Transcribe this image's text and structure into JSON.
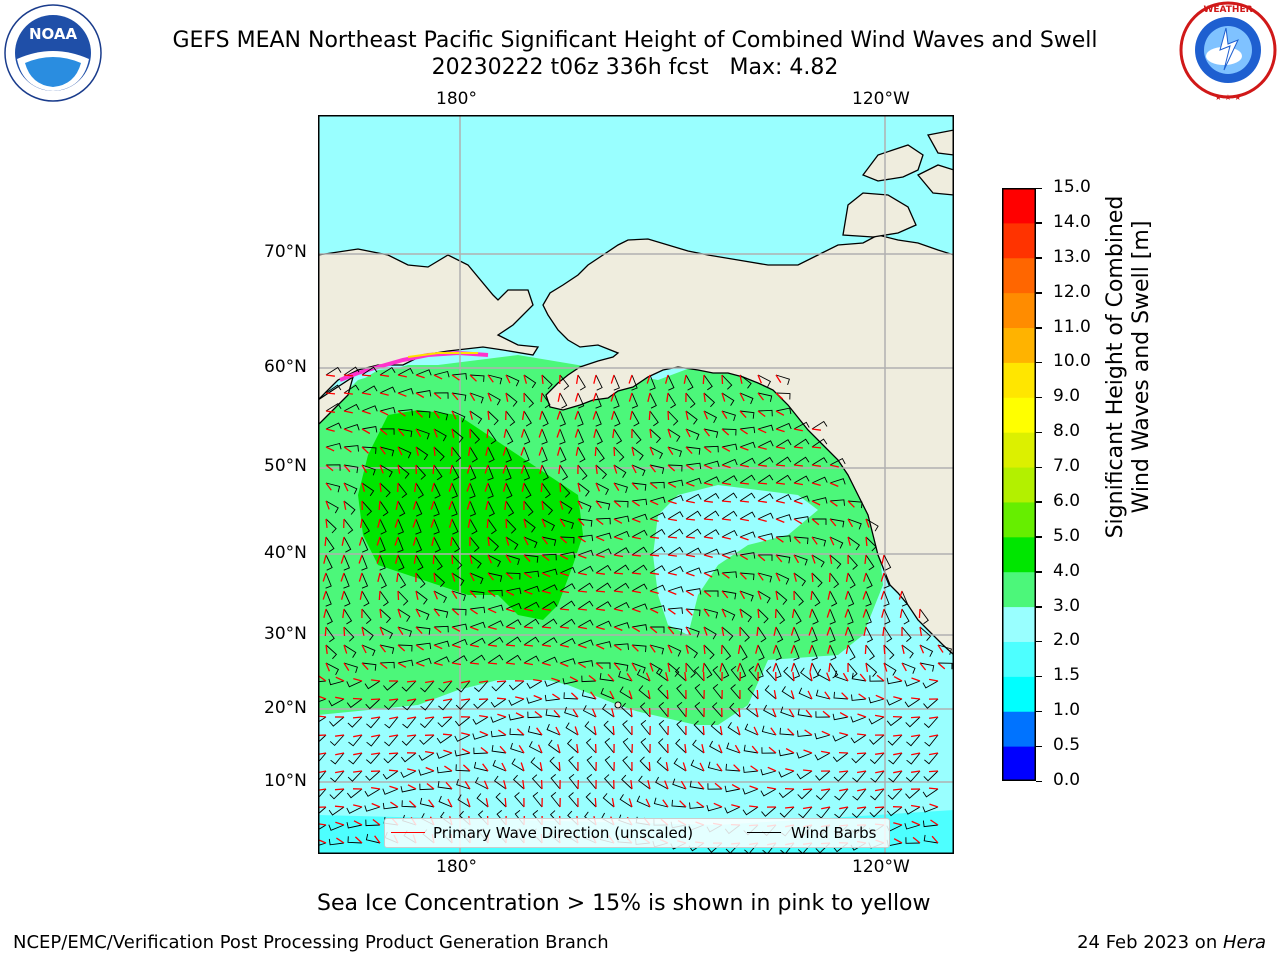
{
  "header": {
    "title_line1": "GEFS MEAN Northeast Pacific Significant Height of Combined Wind Waves and Swell",
    "title_line2": "20230222 t06z 336h fcst   Max: 4.82"
  },
  "logos": {
    "left": {
      "icon": "noaa-logo",
      "text": "NOAA",
      "ring_text": "NATIONAL OCEANIC AND ATMOSPHERIC ADMINISTRATION · U.S. DEPARTMENT OF COMMERCE"
    },
    "right": {
      "icon": "nws-logo",
      "ring_text": "NATIONAL WEATHER SERVICE"
    }
  },
  "map": {
    "top_lon_labels": [
      "180°",
      "120°W"
    ],
    "bottom_lon_labels": [
      "180°",
      "120°W"
    ],
    "lat_labels": [
      "70°N",
      "60°N",
      "50°N",
      "40°N",
      "30°N",
      "20°N",
      "10°N"
    ],
    "legend": {
      "wave_direction": "Primary Wave Direction (unscaled)",
      "wind_barbs": "Wind Barbs",
      "wave_color": "#ff0000",
      "barb_color": "#000000"
    },
    "colors": {
      "land": "#efedde",
      "ocean_low": "#99ffff",
      "ocean_mid": "#4cf77a",
      "ocean_high": "#00e600",
      "grid": "#b0b0b0"
    }
  },
  "colorbar": {
    "label_line1": "Significant Height of Combined",
    "label_line2": "Wind Waves and Swell [m]",
    "ticks": [
      "15.0",
      "14.0",
      "13.0",
      "12.0",
      "11.0",
      "10.0",
      "9.0",
      "8.0",
      "7.0",
      "6.0",
      "5.0",
      "4.0",
      "3.0",
      "2.0",
      "1.5",
      "1.0",
      "0.5",
      "0.0"
    ],
    "colors": [
      "#0000ff",
      "#0073ff",
      "#00ffff",
      "#4dffff",
      "#99ffff",
      "#4cf77a",
      "#00e600",
      "#66ee00",
      "#b3f000",
      "#dcf000",
      "#ffff00",
      "#ffe600",
      "#ffb300",
      "#ff8c00",
      "#ff6600",
      "#ff3300",
      "#ff0000"
    ]
  },
  "caption": "Sea Ice Concentration > 15% is shown in pink to yellow",
  "footer": {
    "left": "NCEP/EMC/Verification Post Processing Product Generation Branch",
    "right_date": "24 Feb 2023 on ",
    "right_machine": "Hera"
  }
}
